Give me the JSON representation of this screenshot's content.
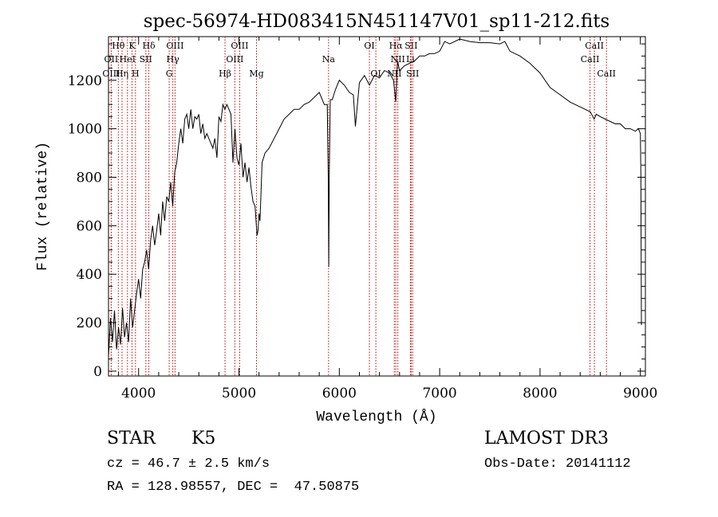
{
  "chart_data": {
    "type": "line",
    "title": "spec-56974-HD083415N451147V01_sp11-212.fits",
    "xlabel": "Wavelength (Å)",
    "ylabel": "Flux (relative)",
    "xlim": [
      3700,
      9050
    ],
    "ylim": [
      -20,
      1380
    ],
    "xticks": [
      4000,
      5000,
      6000,
      7000,
      8000,
      9000
    ],
    "yticks": [
      0,
      200,
      400,
      600,
      800,
      1000,
      1200
    ],
    "line_color": "#000000",
    "marker_color": "#cc0000",
    "series": [
      {
        "name": "flux",
        "x": [
          3700,
          3720,
          3740,
          3760,
          3780,
          3800,
          3820,
          3840,
          3860,
          3880,
          3900,
          3920,
          3940,
          3960,
          3980,
          4000,
          4020,
          4040,
          4060,
          4080,
          4100,
          4120,
          4140,
          4160,
          4180,
          4200,
          4220,
          4240,
          4260,
          4280,
          4300,
          4320,
          4340,
          4360,
          4380,
          4400,
          4420,
          4440,
          4460,
          4480,
          4500,
          4520,
          4540,
          4560,
          4580,
          4600,
          4620,
          4640,
          4660,
          4680,
          4700,
          4720,
          4740,
          4760,
          4780,
          4800,
          4820,
          4840,
          4860,
          4880,
          4900,
          4920,
          4940,
          4960,
          4980,
          5000,
          5020,
          5040,
          5060,
          5080,
          5100,
          5120,
          5140,
          5160,
          5180,
          5190,
          5200,
          5210,
          5230,
          5260,
          5300,
          5350,
          5400,
          5450,
          5500,
          5550,
          5600,
          5650,
          5700,
          5750,
          5800,
          5850,
          5880,
          5890,
          5895,
          5900,
          5910,
          5930,
          5960,
          6000,
          6050,
          6100,
          6140,
          6160,
          6200,
          6250,
          6300,
          6350,
          6400,
          6450,
          6500,
          6540,
          6563,
          6580,
          6600,
          6650,
          6700,
          6750,
          6800,
          6850,
          6900,
          6950,
          7000,
          7050,
          7100,
          7200,
          7300,
          7400,
          7500,
          7600,
          7650,
          7700,
          7800,
          7900,
          8000,
          8100,
          8200,
          8300,
          8400,
          8500,
          8540,
          8560,
          8600,
          8650,
          8700,
          8750,
          8800,
          8850,
          8900,
          8950,
          8980,
          9000,
          9005,
          9010
        ],
        "y": [
          60,
          220,
          120,
          250,
          90,
          180,
          110,
          260,
          140,
          200,
          120,
          300,
          180,
          250,
          320,
          380,
          300,
          420,
          450,
          500,
          420,
          540,
          600,
          520,
          580,
          650,
          560,
          700,
          620,
          720,
          700,
          780,
          680,
          820,
          860,
          940,
          1000,
          940,
          1040,
          1060,
          1000,
          1080,
          1000,
          1050,
          1040,
          1060,
          980,
          1020,
          960,
          980,
          960,
          940,
          920,
          960,
          880,
          1050,
          1030,
          1100,
          1080,
          1100,
          1080,
          1060,
          860,
          1000,
          880,
          850,
          940,
          800,
          860,
          780,
          840,
          760,
          700,
          680,
          560,
          580,
          650,
          620,
          860,
          900,
          920,
          960,
          1000,
          1040,
          1060,
          1080,
          1080,
          1100,
          1110,
          1130,
          1150,
          1100,
          1100,
          800,
          430,
          800,
          1120,
          1120,
          1160,
          1200,
          1180,
          1150,
          1140,
          1010,
          1190,
          1220,
          1180,
          1220,
          1210,
          1240,
          1230,
          1200,
          1110,
          1280,
          1240,
          1260,
          1270,
          1280,
          1300,
          1300,
          1310,
          1310,
          1320,
          1360,
          1350,
          1370,
          1360,
          1355,
          1355,
          1350,
          1360,
          1320,
          1300,
          1270,
          1230,
          1170,
          1140,
          1110,
          1090,
          1070,
          1040,
          1060,
          1050,
          1040,
          1030,
          1020,
          1020,
          1000,
          1000,
          990,
          1000,
          980,
          820,
          190
        ]
      }
    ],
    "line_markers": [
      {
        "label": "Hθ",
        "x": 3798,
        "row": 0
      },
      {
        "label": "OII",
        "x": 3727,
        "row": 1
      },
      {
        "label": "OIII",
        "x": 3727,
        "row": 2
      },
      {
        "label": "K",
        "x": 3934,
        "row": 0
      },
      {
        "label": "HeI",
        "x": 3889,
        "row": 1
      },
      {
        "label": "Hη",
        "x": 3835,
        "row": 2
      },
      {
        "label": "Hδ",
        "x": 4102,
        "row": 0
      },
      {
        "label": "SII",
        "x": 4072,
        "row": 1
      },
      {
        "label": "H",
        "x": 3969,
        "row": 2
      },
      {
        "label": "OIII",
        "x": 4363,
        "row": 0
      },
      {
        "label": "Hγ",
        "x": 4341,
        "row": 1
      },
      {
        "label": "G",
        "x": 4305,
        "row": 2
      },
      {
        "label": "OIII",
        "x": 5007,
        "row": 0
      },
      {
        "label": "OIII",
        "x": 4959,
        "row": 1
      },
      {
        "label": "Hβ",
        "x": 4861,
        "row": 2
      },
      {
        "label": "Mg",
        "x": 5175,
        "row": 2
      },
      {
        "label": "Na",
        "x": 5893,
        "row": 1
      },
      {
        "label": "OI",
        "x": 6300,
        "row": 0
      },
      {
        "label": "OI",
        "x": 6364,
        "row": 2
      },
      {
        "label": "Hα",
        "x": 6563,
        "row": 0
      },
      {
        "label": "NII",
        "x": 6583,
        "row": 1
      },
      {
        "label": "NII",
        "x": 6548,
        "row": 2
      },
      {
        "label": "SII",
        "x": 6716,
        "row": 0
      },
      {
        "label": "Li",
        "x": 6708,
        "row": 1
      },
      {
        "label": "SII",
        "x": 6731,
        "row": 2
      },
      {
        "label": "CaII",
        "x": 8542,
        "row": 0
      },
      {
        "label": "CaII",
        "x": 8498,
        "row": 1
      },
      {
        "label": "CaII",
        "x": 8662,
        "row": 2
      }
    ]
  },
  "info": {
    "object_class": "STAR",
    "subclass": "K5",
    "survey": "LAMOST DR3",
    "redshift": "cz = 46.7 ± 2.5 km/s",
    "obs_date": "Obs-Date: 20141112",
    "coordinates": "RA = 128.98557, DEC =  47.50875"
  }
}
